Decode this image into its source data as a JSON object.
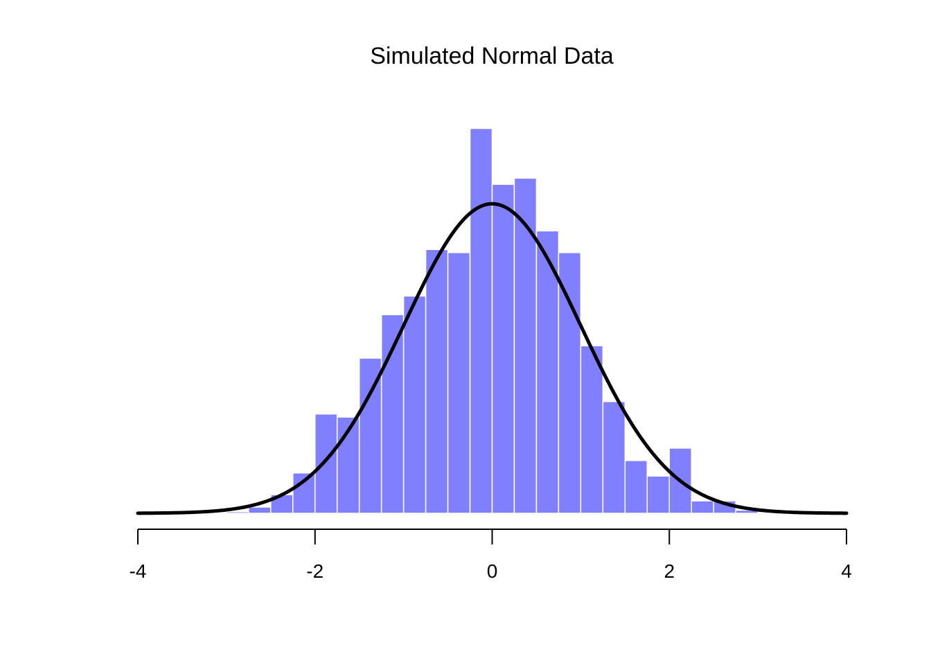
{
  "chart_data": {
    "type": "bar",
    "title": "Simulated Normal Data",
    "xlabel": "",
    "ylabel": "",
    "xlim": [
      -4,
      4
    ],
    "ylim": [
      0,
      0.5
    ],
    "x_ticks": [
      -4,
      -2,
      0,
      2,
      4
    ],
    "x_tick_labels": [
      "-4",
      "-2",
      "0",
      "2",
      "4"
    ],
    "y_axis_shown": false,
    "grid": false,
    "legend": "none",
    "bin_width": 0.25,
    "bins": [
      {
        "x0": -3.0,
        "x1": -2.75,
        "density": 0.002
      },
      {
        "x0": -2.75,
        "x1": -2.5,
        "density": 0.008
      },
      {
        "x0": -2.5,
        "x1": -2.25,
        "density": 0.024
      },
      {
        "x0": -2.25,
        "x1": -2.0,
        "density": 0.052
      },
      {
        "x0": -2.0,
        "x1": -1.75,
        "density": 0.128
      },
      {
        "x0": -1.75,
        "x1": -1.5,
        "density": 0.124
      },
      {
        "x0": -1.5,
        "x1": -1.25,
        "density": 0.2
      },
      {
        "x0": -1.25,
        "x1": -1.0,
        "density": 0.256
      },
      {
        "x0": -1.0,
        "x1": -0.75,
        "density": 0.28
      },
      {
        "x0": -0.75,
        "x1": -0.5,
        "density": 0.34
      },
      {
        "x0": -0.5,
        "x1": -0.25,
        "density": 0.336
      },
      {
        "x0": -0.25,
        "x1": 0.0,
        "density": 0.496
      },
      {
        "x0": 0.0,
        "x1": 0.25,
        "density": 0.424
      },
      {
        "x0": 0.25,
        "x1": 0.5,
        "density": 0.432
      },
      {
        "x0": 0.5,
        "x1": 0.75,
        "density": 0.364
      },
      {
        "x0": 0.75,
        "x1": 1.0,
        "density": 0.336
      },
      {
        "x0": 1.0,
        "x1": 1.25,
        "density": 0.216
      },
      {
        "x0": 1.25,
        "x1": 1.5,
        "density": 0.144
      },
      {
        "x0": 1.5,
        "x1": 1.75,
        "density": 0.068
      },
      {
        "x0": 1.75,
        "x1": 2.0,
        "density": 0.048
      },
      {
        "x0": 2.0,
        "x1": 2.25,
        "density": 0.084
      },
      {
        "x0": 2.25,
        "x1": 2.5,
        "density": 0.016
      },
      {
        "x0": 2.5,
        "x1": 2.75,
        "density": 0.016
      },
      {
        "x0": 2.75,
        "x1": 3.0,
        "density": 0.004
      }
    ],
    "curve": {
      "type": "normal-density",
      "mean": 0,
      "sd": 1,
      "x_range": [
        -4,
        4
      ]
    },
    "colors": {
      "bar_fill": "#8080FF",
      "bar_border": "#FFFFFF",
      "curve": "#000000",
      "axis": "#000000"
    }
  }
}
